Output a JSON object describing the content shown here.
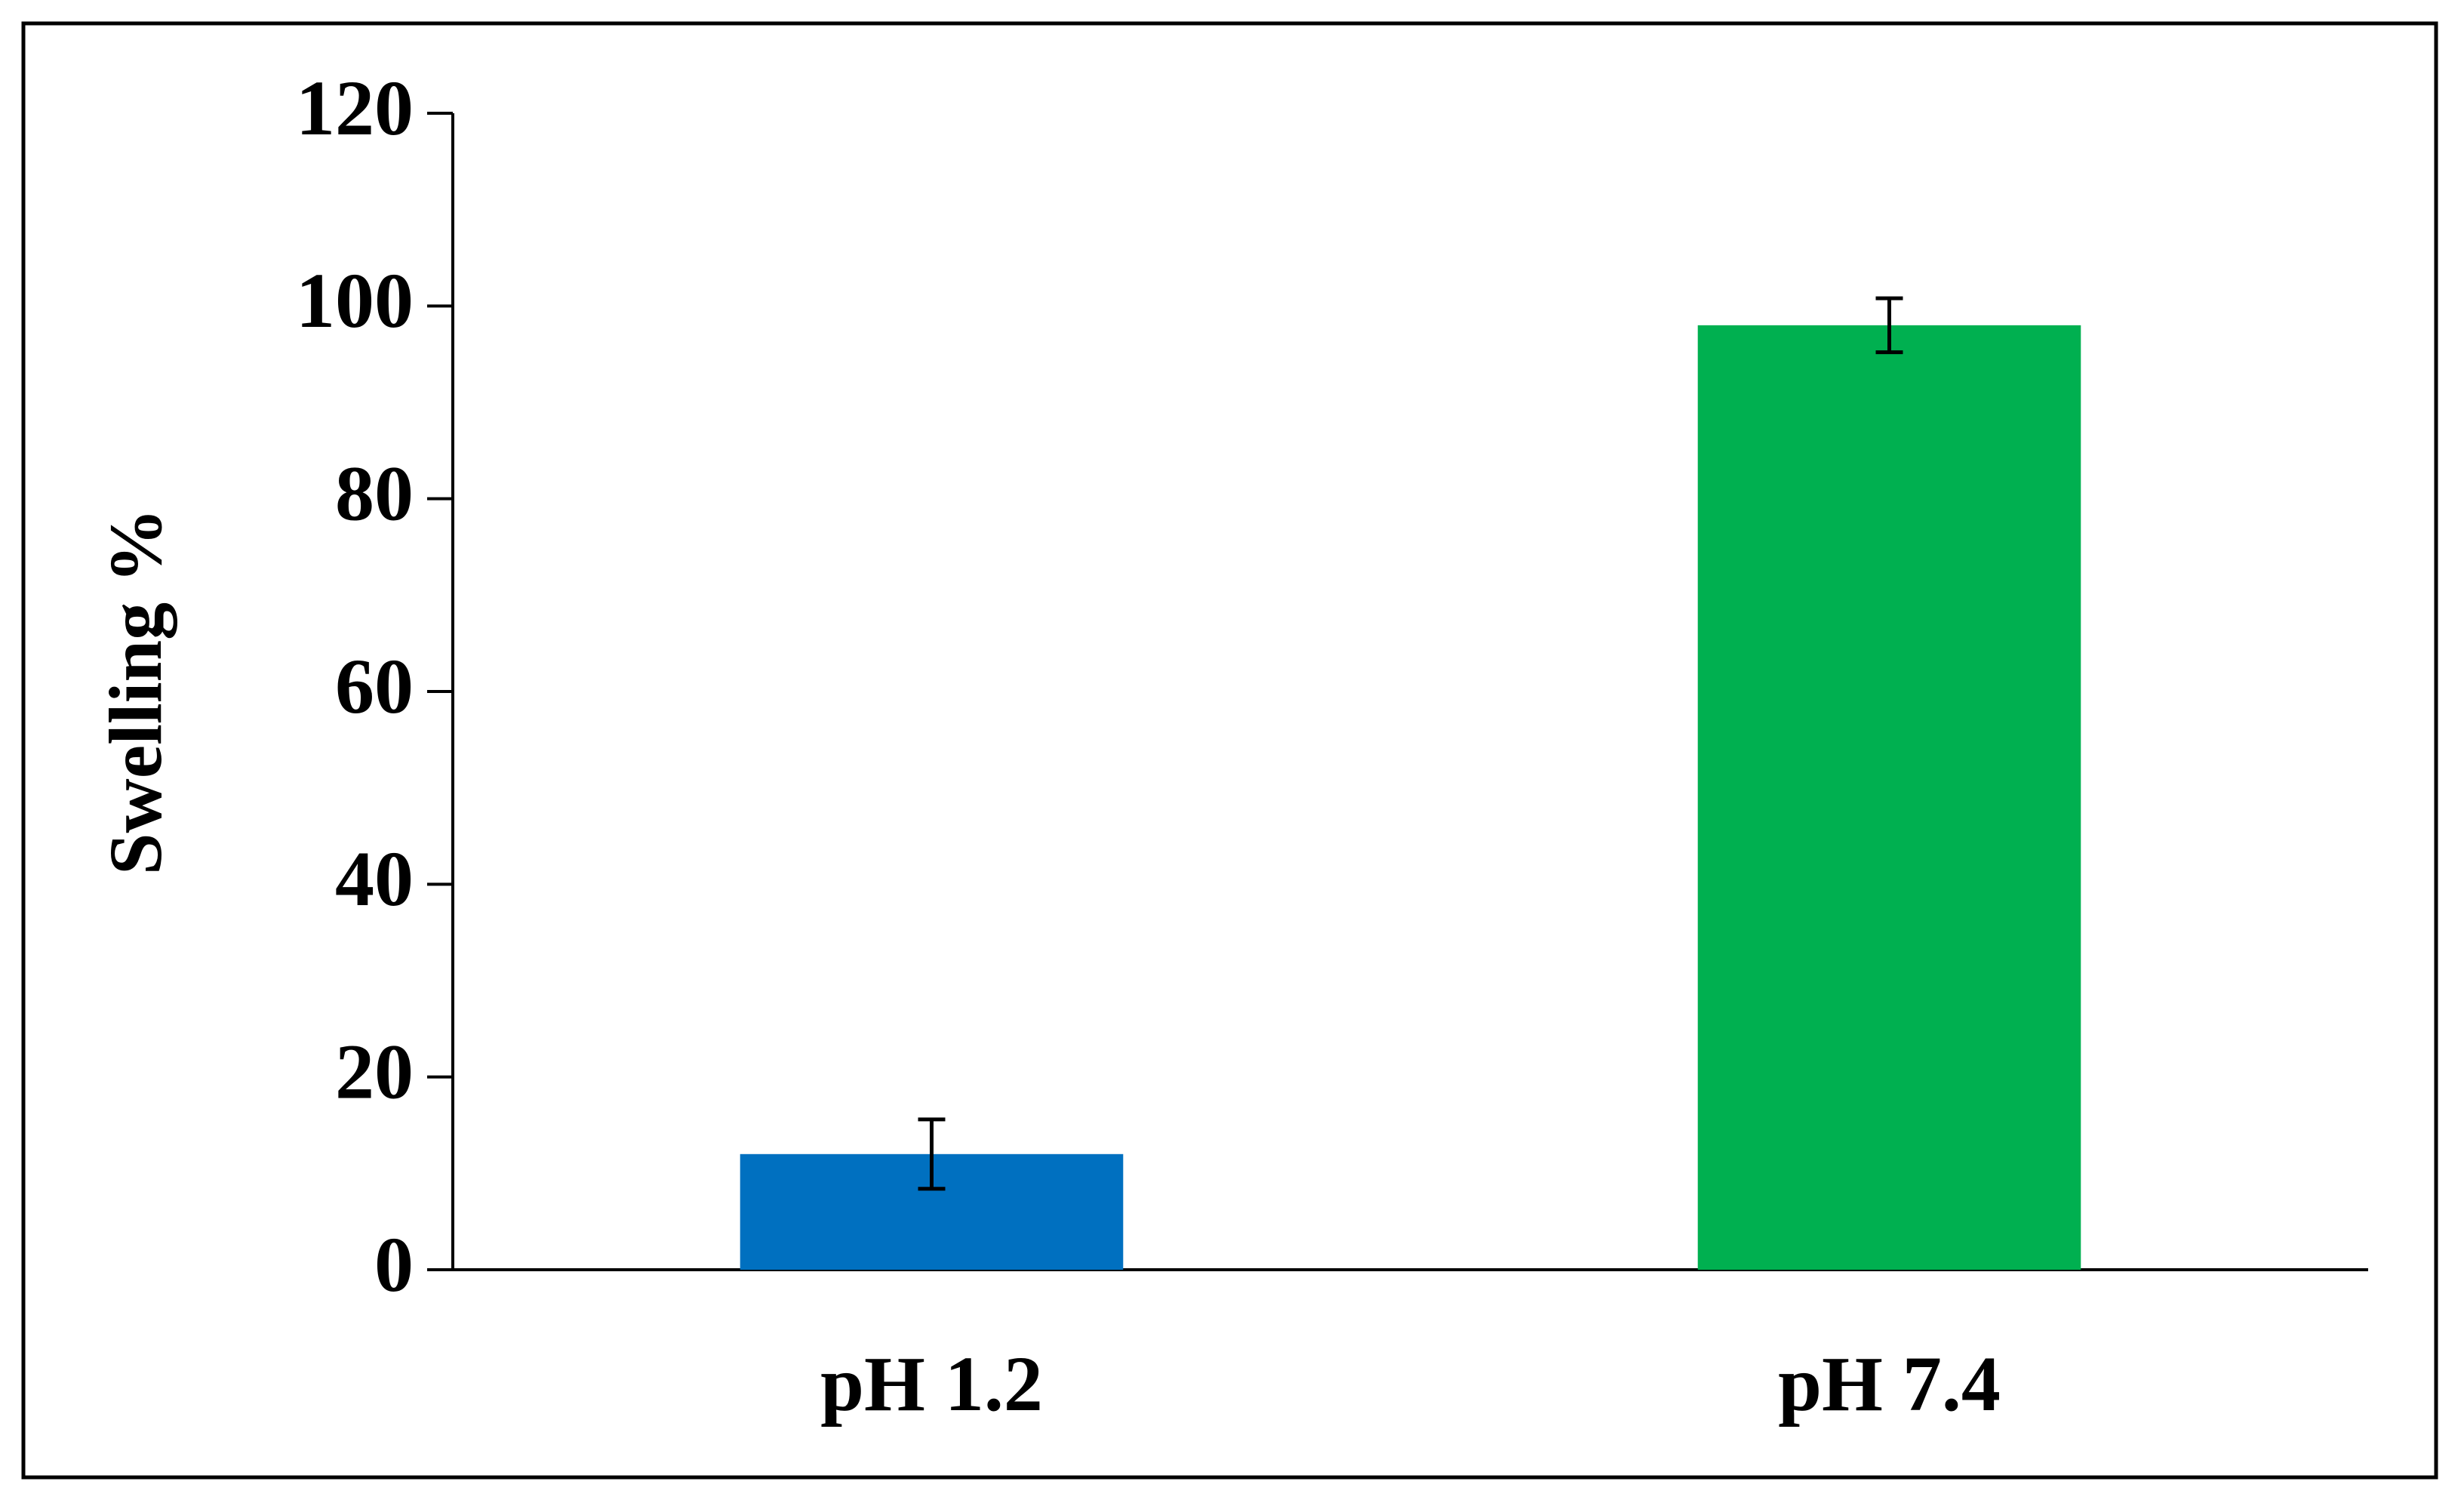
{
  "chart_data": {
    "type": "bar",
    "y_label": "Swelling %",
    "categories": [
      "pH 1.2",
      "pH 7.4"
    ],
    "values": [
      12,
      98
    ],
    "errors": [
      3.6,
      2.8
    ],
    "colors": [
      "#0070c0",
      "#00b050"
    ],
    "ylim": [
      0,
      120
    ],
    "yticks": [
      0,
      20,
      40,
      60,
      80,
      100,
      120
    ],
    "grid": false
  }
}
